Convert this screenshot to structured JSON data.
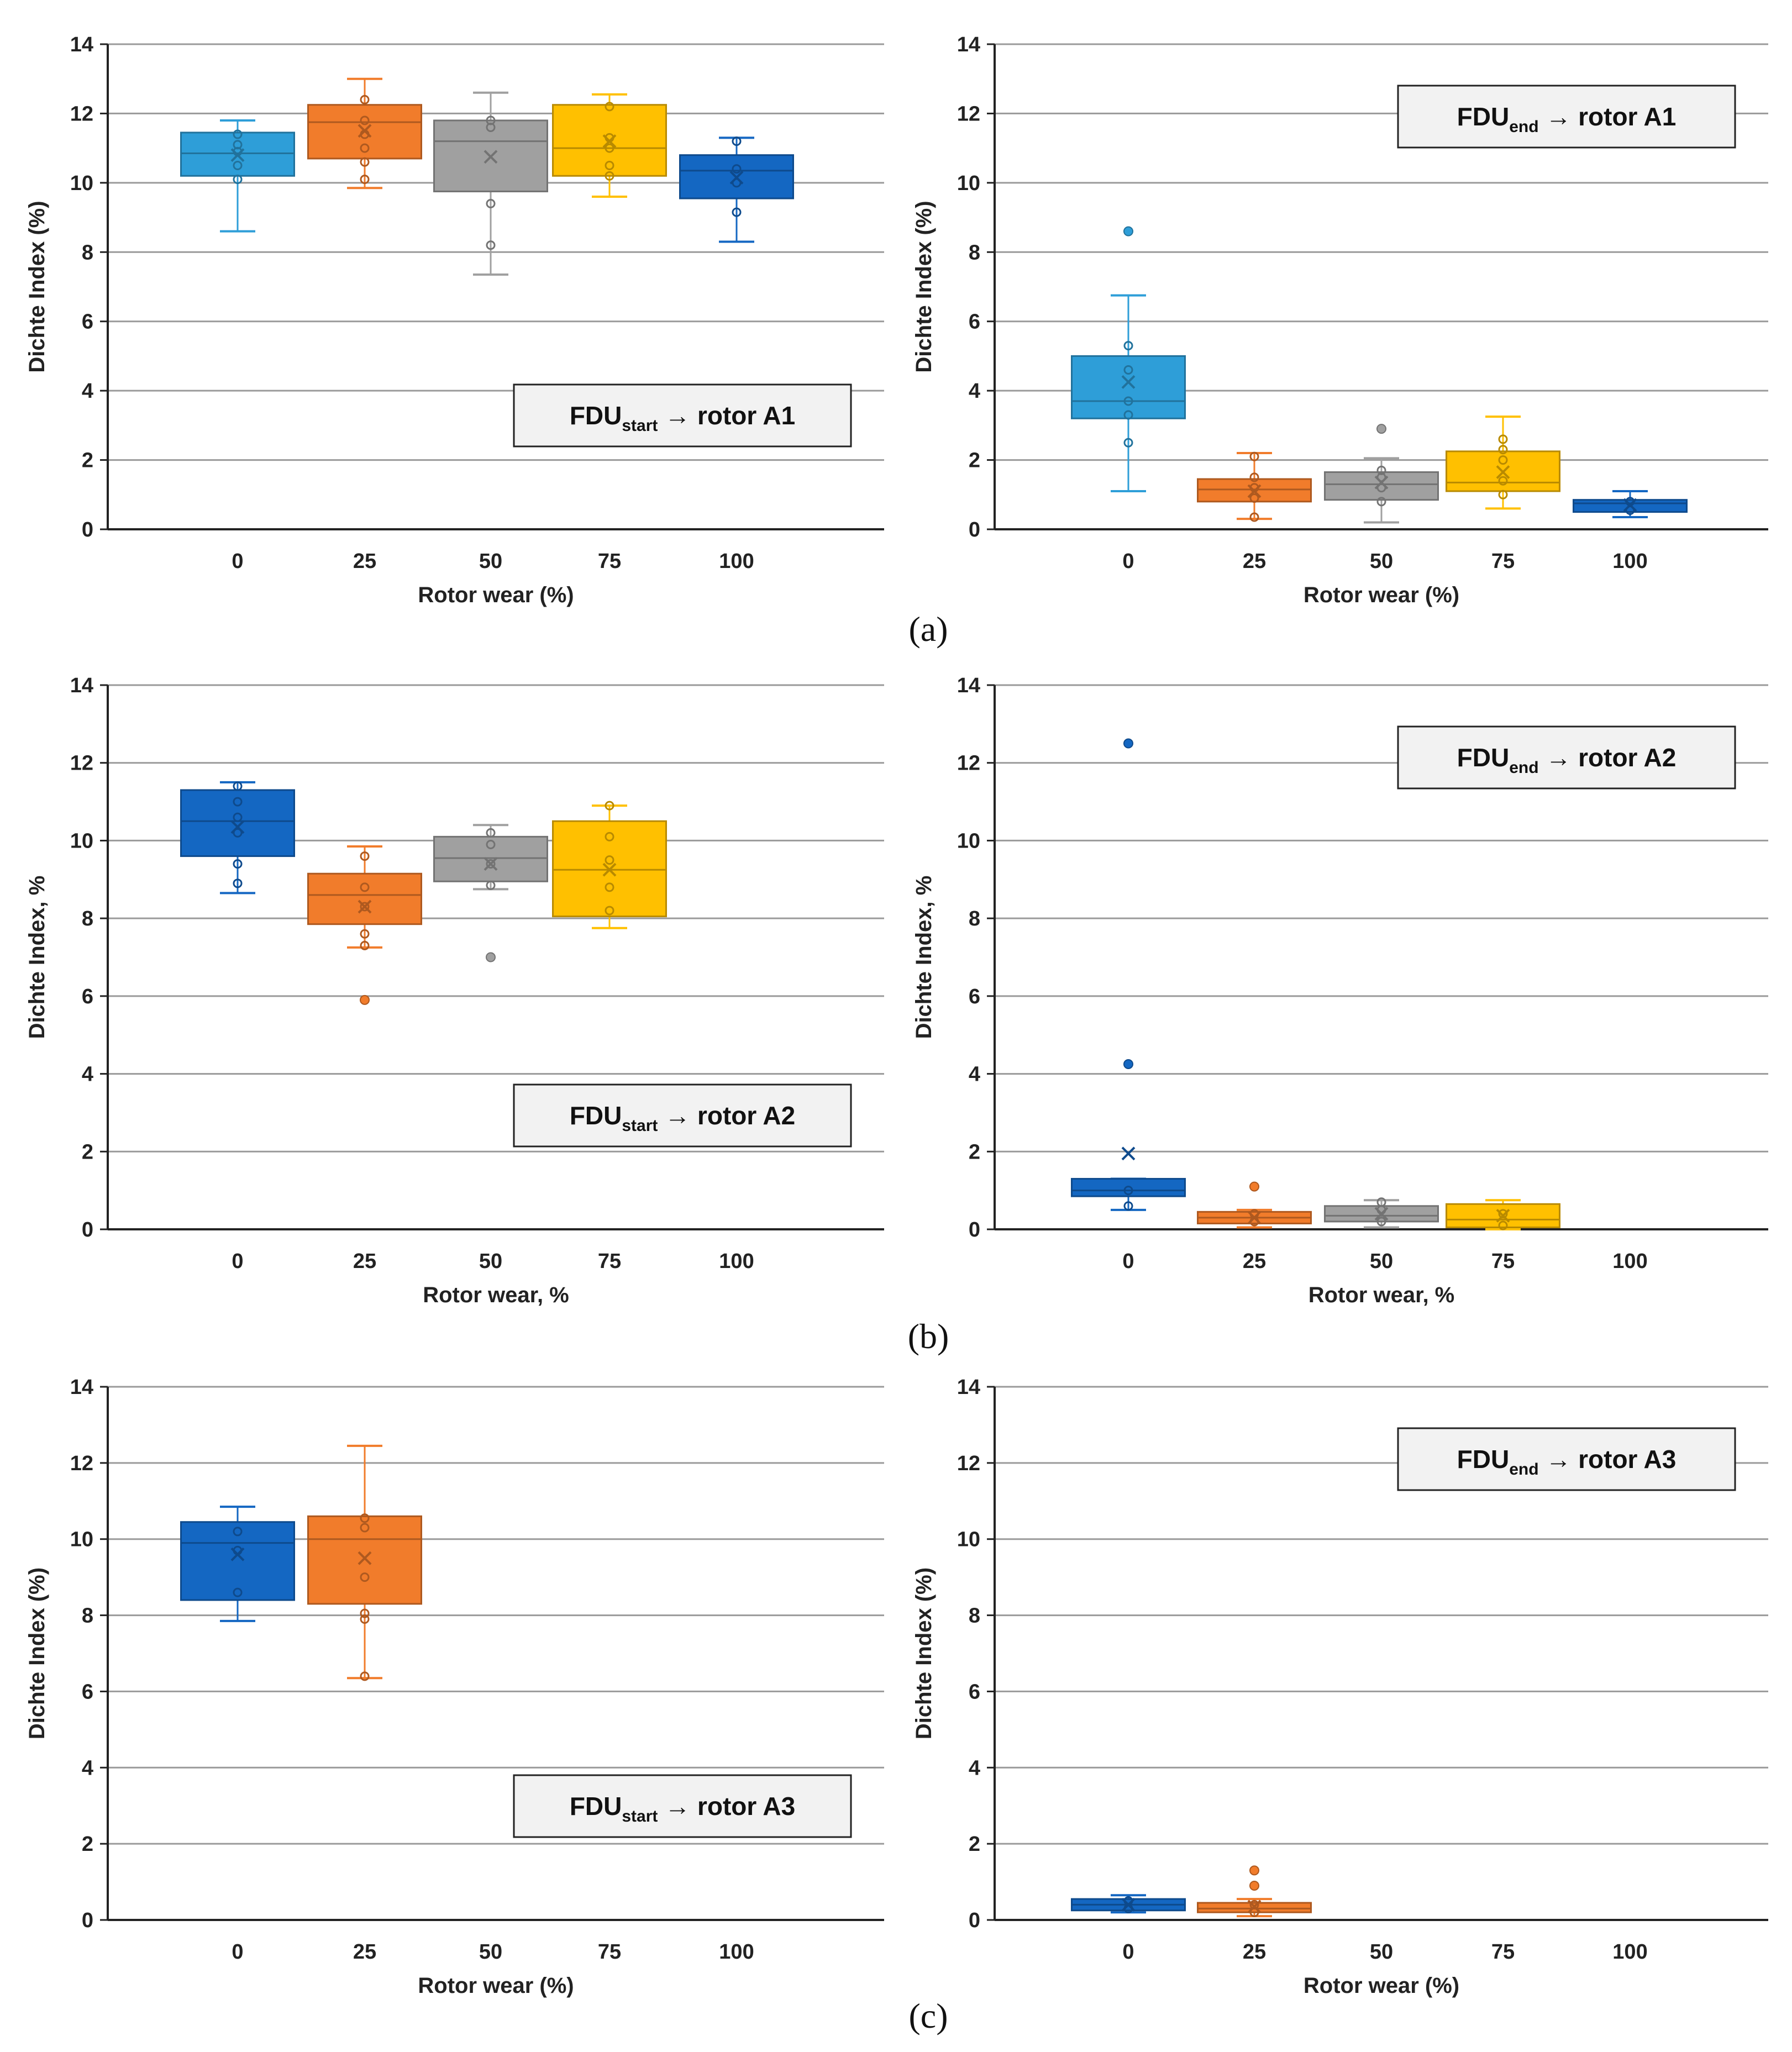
{
  "panel_labels": [
    "(a)",
    "(b)",
    "(c)"
  ],
  "colors": {
    "c0_light": "#2E9ED8",
    "c0_dark": "#1467C2",
    "c25": "#F17C2B",
    "c50": "#A0A0A0",
    "c75": "#FFC000",
    "c100": "#1467C2",
    "grid": "#9A9A9A",
    "axis": "#222222"
  },
  "chart_data": [
    {
      "id": "a-left",
      "type": "box",
      "row": 0,
      "col": 0,
      "ylabel": "Dichte Index (%)",
      "xlabel": "Rotor wear (%)",
      "ylim": [
        0,
        14
      ],
      "yticks": [
        "0",
        "2",
        "4",
        "6",
        "8",
        "10",
        "12",
        "14"
      ],
      "categories": [
        "0",
        "25",
        "50",
        "75",
        "100"
      ],
      "legend": {
        "main": "FDU",
        "sub": "start",
        "rest": "→ rotor A1",
        "position": "bottom-right"
      },
      "boxes": [
        {
          "cat": "0",
          "color": "c0_light",
          "q1": 10.2,
          "median": 10.85,
          "q3": 11.45,
          "mean": 10.8,
          "whisker_low": 8.6,
          "whisker_high": 11.8,
          "points": [
            10.1,
            10.5,
            10.9,
            11.1,
            11.4
          ],
          "outliers": []
        },
        {
          "cat": "25",
          "color": "c25",
          "q1": 10.7,
          "median": 11.75,
          "q3": 12.25,
          "mean": 11.5,
          "whisker_low": 9.85,
          "whisker_high": 13.0,
          "points": [
            10.1,
            10.6,
            11.0,
            11.4,
            11.8,
            12.4
          ],
          "outliers": []
        },
        {
          "cat": "50",
          "color": "c50",
          "q1": 9.75,
          "median": 11.2,
          "q3": 11.8,
          "mean": 10.75,
          "whisker_low": 7.35,
          "whisker_high": 12.6,
          "points": [
            8.2,
            9.4,
            11.6,
            11.8
          ],
          "outliers": []
        },
        {
          "cat": "75",
          "color": "c75",
          "q1": 10.2,
          "median": 11.0,
          "q3": 12.25,
          "mean": 11.2,
          "whisker_low": 9.6,
          "whisker_high": 12.55,
          "points": [
            10.2,
            10.5,
            11.0,
            11.3,
            12.2
          ],
          "outliers": []
        },
        {
          "cat": "100",
          "color": "c100",
          "q1": 9.55,
          "median": 10.35,
          "q3": 10.8,
          "mean": 10.15,
          "whisker_low": 8.3,
          "whisker_high": 11.3,
          "points": [
            9.15,
            10.0,
            10.4,
            11.2
          ],
          "outliers": []
        }
      ]
    },
    {
      "id": "a-right",
      "type": "box",
      "row": 0,
      "col": 1,
      "ylabel": "Dichte Index (%)",
      "xlabel": "Rotor wear (%)",
      "ylim": [
        0,
        14
      ],
      "yticks": [
        "0",
        "2",
        "4",
        "6",
        "8",
        "10",
        "12",
        "14"
      ],
      "categories": [
        "0",
        "25",
        "50",
        "75",
        "100"
      ],
      "legend": {
        "main": "FDU",
        "sub": "end",
        "rest": "→ rotor A1",
        "position": "top-right"
      },
      "boxes": [
        {
          "cat": "0",
          "color": "c0_light",
          "q1": 3.2,
          "median": 3.7,
          "q3": 5.0,
          "mean": 4.25,
          "whisker_low": 1.1,
          "whisker_high": 6.75,
          "points": [
            2.5,
            3.3,
            3.7,
            4.6,
            5.3
          ],
          "outliers": [
            8.6
          ]
        },
        {
          "cat": "25",
          "color": "c25",
          "q1": 0.8,
          "median": 1.15,
          "q3": 1.45,
          "mean": 1.1,
          "whisker_low": 0.3,
          "whisker_high": 2.2,
          "points": [
            0.35,
            0.9,
            1.2,
            1.5,
            2.1
          ],
          "outliers": []
        },
        {
          "cat": "50",
          "color": "c50",
          "q1": 0.85,
          "median": 1.3,
          "q3": 1.65,
          "mean": 1.35,
          "whisker_low": 0.2,
          "whisker_high": 2.05,
          "points": [
            0.8,
            1.2,
            1.5,
            1.7
          ],
          "outliers": [
            2.9
          ]
        },
        {
          "cat": "75",
          "color": "c75",
          "q1": 1.1,
          "median": 1.35,
          "q3": 2.25,
          "mean": 1.65,
          "whisker_low": 0.6,
          "whisker_high": 3.25,
          "points": [
            1.0,
            1.4,
            2.0,
            2.3,
            2.6
          ],
          "outliers": []
        },
        {
          "cat": "100",
          "color": "c100",
          "q1": 0.5,
          "median": 0.75,
          "q3": 0.85,
          "mean": 0.7,
          "whisker_low": 0.35,
          "whisker_high": 1.1,
          "points": [
            0.55,
            0.8
          ],
          "outliers": []
        }
      ]
    },
    {
      "id": "b-left",
      "type": "box",
      "row": 1,
      "col": 0,
      "ylabel": "Dichte Index, %",
      "xlabel": "Rotor wear, %",
      "ylim": [
        0,
        14
      ],
      "yticks": [
        "0",
        "2",
        "4",
        "6",
        "8",
        "10",
        "12",
        "14"
      ],
      "categories": [
        "0",
        "25",
        "50",
        "75",
        "100"
      ],
      "legend": {
        "main": "FDU",
        "sub": "start",
        "rest": "→ rotor  A2",
        "position": "bottom-right"
      },
      "boxes": [
        {
          "cat": "0",
          "color": "c0_dark",
          "q1": 9.6,
          "median": 10.5,
          "q3": 11.3,
          "mean": 10.35,
          "whisker_low": 8.65,
          "whisker_high": 11.5,
          "points": [
            8.9,
            9.4,
            10.2,
            10.6,
            11.0,
            11.4
          ],
          "outliers": []
        },
        {
          "cat": "25",
          "color": "c25",
          "q1": 7.85,
          "median": 8.6,
          "q3": 9.15,
          "mean": 8.3,
          "whisker_low": 7.25,
          "whisker_high": 9.85,
          "points": [
            7.3,
            7.6,
            8.3,
            8.8,
            9.6
          ],
          "outliers": [
            5.9
          ]
        },
        {
          "cat": "50",
          "color": "c50",
          "q1": 8.95,
          "median": 9.55,
          "q3": 10.1,
          "mean": 9.4,
          "whisker_low": 8.75,
          "whisker_high": 10.4,
          "points": [
            8.85,
            9.4,
            9.9,
            10.2
          ],
          "outliers": [
            7.0
          ]
        },
        {
          "cat": "75",
          "color": "c75",
          "q1": 8.05,
          "median": 9.25,
          "q3": 10.5,
          "mean": 9.25,
          "whisker_low": 7.75,
          "whisker_high": 10.9,
          "points": [
            8.2,
            8.8,
            9.5,
            10.1,
            10.9
          ],
          "outliers": []
        }
      ]
    },
    {
      "id": "b-right",
      "type": "box",
      "row": 1,
      "col": 1,
      "ylabel": "Dichte Index, %",
      "xlabel": "Rotor wear, %",
      "ylim": [
        0,
        14
      ],
      "yticks": [
        "0",
        "2",
        "4",
        "6",
        "8",
        "10",
        "12",
        "14"
      ],
      "categories": [
        "0",
        "25",
        "50",
        "75",
        "100"
      ],
      "legend": {
        "main": "FDU",
        "sub": "end",
        "rest": "→ rotor  A2",
        "position": "top-right"
      },
      "boxes": [
        {
          "cat": "0",
          "color": "c0_dark",
          "q1": 0.85,
          "median": 1.0,
          "q3": 1.3,
          "mean": 1.95,
          "whisker_low": 0.5,
          "whisker_high": 1.3,
          "points": [
            0.6,
            1.0
          ],
          "outliers": [
            4.25,
            12.5
          ]
        },
        {
          "cat": "25",
          "color": "c25",
          "q1": 0.15,
          "median": 0.3,
          "q3": 0.45,
          "mean": 0.3,
          "whisker_low": 0.05,
          "whisker_high": 0.5,
          "points": [
            0.2,
            0.4
          ],
          "outliers": [
            1.1
          ]
        },
        {
          "cat": "50",
          "color": "c50",
          "q1": 0.2,
          "median": 0.35,
          "q3": 0.6,
          "mean": 0.4,
          "whisker_low": 0.05,
          "whisker_high": 0.75,
          "points": [
            0.2,
            0.5,
            0.7
          ],
          "outliers": []
        },
        {
          "cat": "75",
          "color": "c75",
          "q1": 0.05,
          "median": 0.25,
          "q3": 0.65,
          "mean": 0.35,
          "whisker_low": 0.0,
          "whisker_high": 0.75,
          "points": [
            0.1,
            0.4
          ],
          "outliers": []
        }
      ]
    },
    {
      "id": "c-left",
      "type": "box",
      "row": 2,
      "col": 0,
      "ylabel": "Dichte Index (%)",
      "xlabel": "Rotor wear (%)",
      "ylim": [
        0,
        14
      ],
      "yticks": [
        "0",
        "2",
        "4",
        "6",
        "8",
        "10",
        "12",
        "14"
      ],
      "categories": [
        "0",
        "25",
        "50",
        "75",
        "100"
      ],
      "legend": {
        "main": "FDU",
        "sub": "start",
        "rest": "→ rotor A3",
        "position": "bottom-right"
      },
      "boxes": [
        {
          "cat": "0",
          "color": "c0_dark",
          "q1": 8.4,
          "median": 9.9,
          "q3": 10.45,
          "mean": 9.6,
          "whisker_low": 7.85,
          "whisker_high": 10.85,
          "points": [
            8.6,
            9.7,
            10.2
          ],
          "outliers": []
        },
        {
          "cat": "25",
          "color": "c25",
          "q1": 8.3,
          "median": 10.0,
          "q3": 10.6,
          "mean": 9.5,
          "whisker_low": 6.35,
          "whisker_high": 12.45,
          "points": [
            6.4,
            7.9,
            8.05,
            9.0,
            10.3,
            10.55
          ],
          "outliers": []
        }
      ]
    },
    {
      "id": "c-right",
      "type": "box",
      "row": 2,
      "col": 1,
      "ylabel": "Dichte Index (%)",
      "xlabel": "Rotor wear (%)",
      "ylim": [
        0,
        14
      ],
      "yticks": [
        "0",
        "2",
        "4",
        "6",
        "8",
        "10",
        "12",
        "14"
      ],
      "categories": [
        "0",
        "25",
        "50",
        "75",
        "100"
      ],
      "legend": {
        "main": "FDU",
        "sub": "end",
        "rest": "→ rotor A3",
        "position": "top-right"
      },
      "boxes": [
        {
          "cat": "0",
          "color": "c0_dark",
          "q1": 0.25,
          "median": 0.4,
          "q3": 0.55,
          "mean": 0.4,
          "whisker_low": 0.2,
          "whisker_high": 0.65,
          "points": [
            0.3,
            0.5
          ],
          "outliers": []
        },
        {
          "cat": "25",
          "color": "c25",
          "q1": 0.2,
          "median": 0.3,
          "q3": 0.45,
          "mean": 0.35,
          "whisker_low": 0.1,
          "whisker_high": 0.55,
          "points": [
            0.2,
            0.4
          ],
          "outliers": [
            0.9,
            1.3
          ]
        }
      ]
    }
  ]
}
